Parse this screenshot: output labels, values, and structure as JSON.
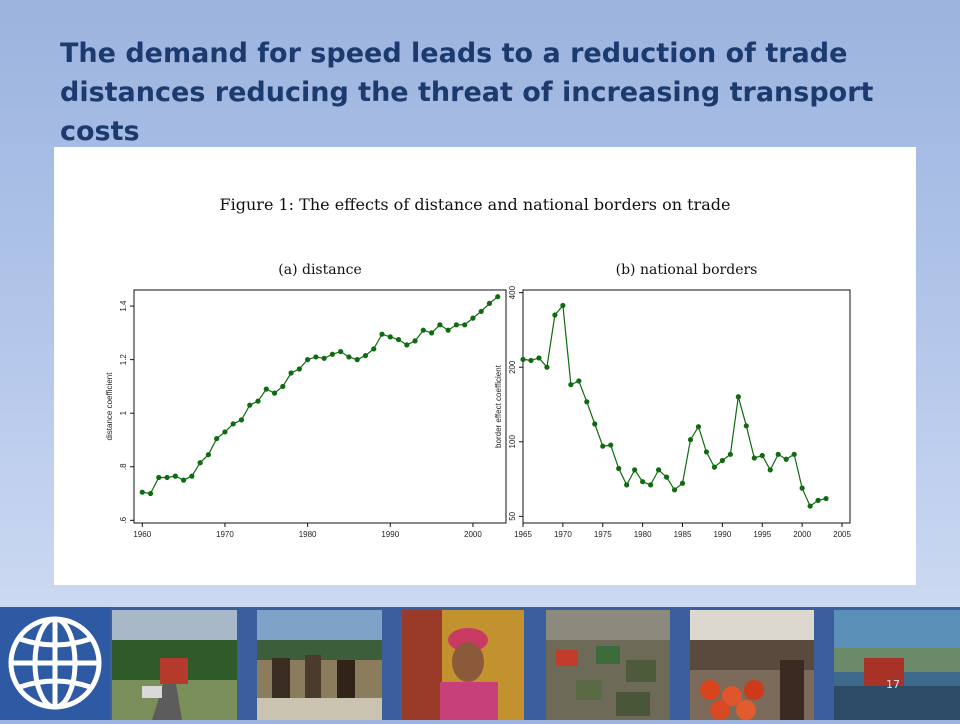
{
  "slide": {
    "title": "The demand for speed leads to a reduction of trade distances reducing the threat of increasing transport costs",
    "figure_title": "Figure 1: The effects of distance and national borders on trade",
    "slide_number": "17",
    "colors": {
      "title": "#1b3a6e",
      "series": "#0f6b0f",
      "strip": "#3a5f9c"
    }
  },
  "photos": [
    {
      "name": "photo-road-truck",
      "icon": "truck-on-road-photo"
    },
    {
      "name": "photo-workers-sacks",
      "icon": "workers-photo"
    },
    {
      "name": "photo-man-turban",
      "icon": "portrait-photo"
    },
    {
      "name": "photo-traffic",
      "icon": "traffic-photo"
    },
    {
      "name": "photo-market",
      "icon": "market-photo"
    },
    {
      "name": "photo-truck-landscape",
      "icon": "truck-photo"
    }
  ],
  "chart_data": [
    {
      "type": "line",
      "title": "(a) distance",
      "xlabel": "",
      "ylabel": "distance coefficient",
      "xlim": [
        1959,
        2004
      ],
      "ylim": [
        0.59,
        1.46
      ],
      "xticks": [
        1960,
        1970,
        1980,
        1990,
        2000
      ],
      "xtick_labels": [
        "1960",
        "1970",
        "1980",
        "1990",
        "2000"
      ],
      "yticks": [
        0.6,
        0.8,
        1.0,
        1.2,
        1.4
      ],
      "ytick_labels": [
        ".6",
        ".8",
        "1",
        "1.2",
        "1.4"
      ],
      "grid": false,
      "series": [
        {
          "marker": "circle",
          "x": [
            1960,
            1961,
            1962,
            1963,
            1964,
            1965,
            1966,
            1967,
            1968,
            1969,
            1970,
            1971,
            1972,
            1973,
            1974,
            1975,
            1976,
            1977,
            1978,
            1979,
            1980,
            1981,
            1982,
            1983,
            1984,
            1985,
            1986,
            1987,
            1988,
            1989,
            1990,
            1991,
            1992,
            1993,
            1994,
            1995,
            1996,
            1997,
            1998,
            1999,
            2000,
            2001,
            2002,
            2003
          ],
          "y": [
            0.705,
            0.7,
            0.76,
            0.76,
            0.765,
            0.75,
            0.765,
            0.815,
            0.845,
            0.905,
            0.93,
            0.96,
            0.975,
            1.03,
            1.045,
            1.09,
            1.075,
            1.1,
            1.15,
            1.165,
            1.2,
            1.21,
            1.205,
            1.22,
            1.23,
            1.21,
            1.2,
            1.215,
            1.24,
            1.295,
            1.285,
            1.275,
            1.255,
            1.27,
            1.31,
            1.3,
            1.33,
            1.31,
            1.33,
            1.33,
            1.355,
            1.38,
            1.41,
            1.435
          ]
        }
      ]
    },
    {
      "type": "line",
      "title": "(b) national borders",
      "xlabel": "",
      "ylabel": "border effect coefficient",
      "scale_y": "log",
      "xlim": [
        1965,
        2006
      ],
      "ylim": [
        47,
        410
      ],
      "xticks": [
        1965,
        1970,
        1975,
        1980,
        1985,
        1990,
        1995,
        2000,
        2005
      ],
      "xtick_labels": [
        "1965",
        "1970",
        "1975",
        "1980",
        "1985",
        "1990",
        "1995",
        "2000",
        "2005"
      ],
      "yticks": [
        50,
        100,
        200,
        400
      ],
      "ytick_labels": [
        "50",
        "100",
        "200",
        "400"
      ],
      "grid": false,
      "series": [
        {
          "marker": "circle",
          "x": [
            1965,
            1966,
            1967,
            1968,
            1969,
            1970,
            1971,
            1972,
            1973,
            1974,
            1975,
            1976,
            1977,
            1978,
            1979,
            1980,
            1981,
            1982,
            1983,
            1984,
            1985,
            1986,
            1987,
            1988,
            1989,
            1990,
            1991,
            1992,
            1993,
            1994,
            1995,
            1996,
            1997,
            1998,
            1999,
            2000,
            2001,
            2002,
            2003
          ],
          "y": [
            215,
            213,
            218,
            200,
            325,
            355,
            170,
            176,
            145,
            118,
            96,
            97,
            78,
            67,
            77,
            69,
            67,
            77,
            72,
            64,
            68,
            102,
            115,
            91,
            79,
            84,
            89,
            152,
            116,
            86,
            88,
            77,
            89,
            85,
            89,
            65,
            55,
            58,
            59
          ]
        }
      ]
    }
  ]
}
